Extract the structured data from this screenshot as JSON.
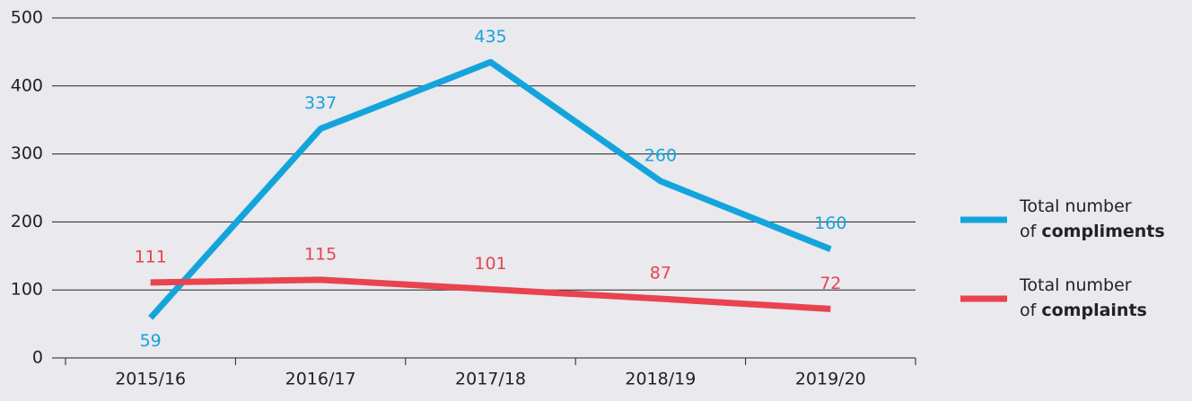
{
  "chart_data": {
    "type": "line",
    "categories": [
      "2015/16",
      "2016/17",
      "2017/18",
      "2018/19",
      "2019/20"
    ],
    "series": [
      {
        "name": "Total number of compliments",
        "color": "#14a4dc",
        "values": [
          59,
          337,
          435,
          260,
          160
        ]
      },
      {
        "name": "Total number of complaints",
        "color": "#e8434f",
        "values": [
          111,
          115,
          101,
          87,
          72
        ]
      }
    ],
    "ylim": [
      0,
      500
    ],
    "yticks": [
      0,
      100,
      200,
      300,
      400,
      500
    ],
    "grid": true,
    "legend": "right"
  }
}
